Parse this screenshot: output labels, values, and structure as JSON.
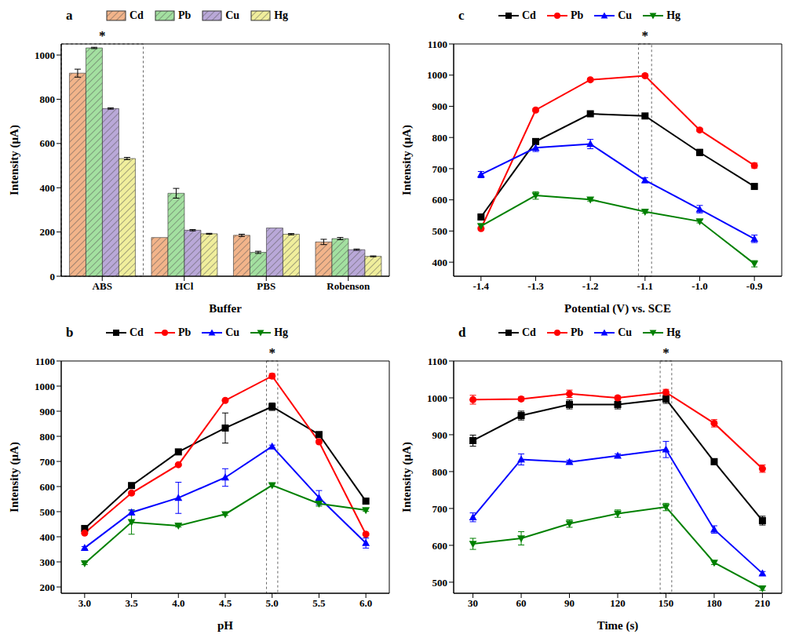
{
  "chart_data": [
    {
      "type": "bar",
      "label": "a",
      "x_label": "Buffer",
      "y_label": "Intensity (μA)",
      "legend": "top",
      "categories": [
        "ABS",
        "HCl",
        "PBS",
        "Robenson"
      ],
      "series": [
        {
          "name": "Cd",
          "color": "#f2b48a",
          "values": [
            918,
            175,
            185,
            155
          ],
          "error": [
            18,
            0,
            5,
            12
          ]
        },
        {
          "name": "Pb",
          "color": "#a3e0a0",
          "values": [
            1032,
            375,
            108,
            170
          ],
          "error": [
            3,
            22,
            5,
            5
          ]
        },
        {
          "name": "Cu",
          "color": "#b9a8d8",
          "values": [
            758,
            208,
            218,
            120
          ],
          "error": [
            3,
            3,
            0,
            3
          ]
        },
        {
          "name": "Hg",
          "color": "#f0ee9c",
          "values": [
            532,
            192,
            190,
            90
          ],
          "error": [
            5,
            2,
            3,
            2
          ]
        }
      ],
      "ylim": [
        0,
        1050
      ],
      "yticks": [
        0,
        200,
        400,
        600,
        800,
        1000
      ],
      "annotations": [
        {
          "text": "*",
          "x": "ABS"
        }
      ]
    },
    {
      "type": "line",
      "label": "b",
      "x_label": "pH",
      "y_label": "Intensity (μA)",
      "legend": "top",
      "x": [
        3,
        3.5,
        4,
        4.5,
        5,
        5.5,
        6
      ],
      "series": [
        {
          "name": "Cd",
          "color": "#000000",
          "marker": "square",
          "values": [
            433,
            604,
            738,
            833,
            918,
            807,
            542
          ],
          "error": [
            10,
            5,
            5,
            60,
            15,
            5,
            5
          ]
        },
        {
          "name": "Pb",
          "color": "#ff0000",
          "marker": "circle",
          "values": [
            415,
            574,
            687,
            943,
            1040,
            778,
            410
          ],
          "error": [
            5,
            5,
            5,
            5,
            10,
            5,
            5
          ]
        },
        {
          "name": "Cu",
          "color": "#0000ff",
          "marker": "triangle-up",
          "values": [
            356,
            497,
            555,
            636,
            760,
            556,
            375
          ],
          "error": [
            5,
            10,
            62,
            35,
            5,
            28,
            20
          ]
        },
        {
          "name": "Hg",
          "color": "#008000",
          "marker": "triangle-down",
          "values": [
            294,
            458,
            444,
            490,
            605,
            532,
            506
          ],
          "error": [
            5,
            48,
            5,
            5,
            5,
            10,
            5
          ]
        }
      ],
      "xlim": [
        2.75,
        6.25
      ],
      "xticks": [
        {
          "value": 3,
          "label": "3.0"
        },
        3.5,
        {
          "value": 4,
          "label": "4.0"
        },
        4.5,
        {
          "value": 5,
          "label": "5.0"
        },
        5.5,
        {
          "value": 6,
          "label": "6.0"
        }
      ],
      "ylim": [
        175,
        1100
      ],
      "yticks": [
        200,
        300,
        400,
        500,
        600,
        700,
        800,
        900,
        1000,
        1100
      ],
      "annotations": [
        {
          "text": "*",
          "x": 5
        }
      ]
    },
    {
      "type": "line",
      "label": "c",
      "x_label": "Potential (V) vs. SCE",
      "y_label": "Intensity (μA)",
      "legend": "top",
      "x": [
        -1.4,
        -1.3,
        -1.2,
        -1.1,
        -1.0,
        -0.9
      ],
      "series": [
        {
          "name": "Cd",
          "color": "#000000",
          "marker": "square",
          "values": [
            545,
            787,
            876,
            869,
            752,
            643
          ],
          "error": [
            5,
            5,
            5,
            5,
            10,
            5
          ]
        },
        {
          "name": "Pb",
          "color": "#ff0000",
          "marker": "circle",
          "values": [
            508,
            888,
            985,
            998,
            824,
            710
          ],
          "error": [
            5,
            5,
            5,
            5,
            5,
            8
          ]
        },
        {
          "name": "Cu",
          "color": "#0000ff",
          "marker": "triangle-up",
          "values": [
            681,
            767,
            779,
            663,
            570,
            475
          ],
          "error": [
            10,
            12,
            15,
            8,
            12,
            12
          ]
        },
        {
          "name": "Hg",
          "color": "#008000",
          "marker": "triangle-down",
          "values": [
            516,
            614,
            601,
            562,
            531,
            395
          ],
          "error": [
            5,
            12,
            5,
            5,
            5,
            10
          ]
        }
      ],
      "xlim": [
        -1.45,
        -0.85
      ],
      "xticks": [
        -1.4,
        -1.3,
        -1.2,
        -1.1,
        {
          "value": -1.0,
          "label": "-1.0"
        },
        -0.9
      ],
      "ylim": [
        355,
        1100
      ],
      "yticks": [
        400,
        500,
        600,
        700,
        800,
        900,
        1000,
        1100
      ],
      "annotations": [
        {
          "text": "*",
          "x": -1.1
        }
      ]
    },
    {
      "type": "line",
      "label": "d",
      "x_label": "Time (s)",
      "y_label": "Intensity (μA)",
      "legend": "top",
      "x": [
        30,
        60,
        90,
        120,
        150,
        180,
        210
      ],
      "series": [
        {
          "name": "Cd",
          "color": "#000000",
          "marker": "square",
          "values": [
            884,
            952,
            982,
            982,
            997,
            827,
            667
          ],
          "error": [
            15,
            12,
            12,
            12,
            12,
            8,
            12
          ]
        },
        {
          "name": "Pb",
          "color": "#ff0000",
          "marker": "circle",
          "values": [
            995,
            997,
            1011,
            1000,
            1015,
            931,
            808
          ],
          "error": [
            12,
            5,
            10,
            5,
            8,
            10,
            10
          ]
        },
        {
          "name": "Cu",
          "color": "#0000ff",
          "marker": "triangle-up",
          "values": [
            676,
            833,
            826,
            843,
            860,
            643,
            524
          ],
          "error": [
            12,
            15,
            5,
            5,
            22,
            10,
            5
          ]
        },
        {
          "name": "Hg",
          "color": "#008000",
          "marker": "triangle-down",
          "values": [
            604,
            619,
            659,
            686,
            704,
            553,
            483
          ],
          "error": [
            15,
            18,
            10,
            10,
            10,
            5,
            5
          ]
        }
      ],
      "xlim": [
        18,
        222
      ],
      "xticks": [
        30,
        60,
        90,
        120,
        150,
        180,
        210
      ],
      "ylim": [
        470,
        1100
      ],
      "yticks": [
        500,
        600,
        700,
        800,
        900,
        1000,
        1100
      ],
      "annotations": [
        {
          "text": "*",
          "x": 150
        }
      ]
    }
  ]
}
